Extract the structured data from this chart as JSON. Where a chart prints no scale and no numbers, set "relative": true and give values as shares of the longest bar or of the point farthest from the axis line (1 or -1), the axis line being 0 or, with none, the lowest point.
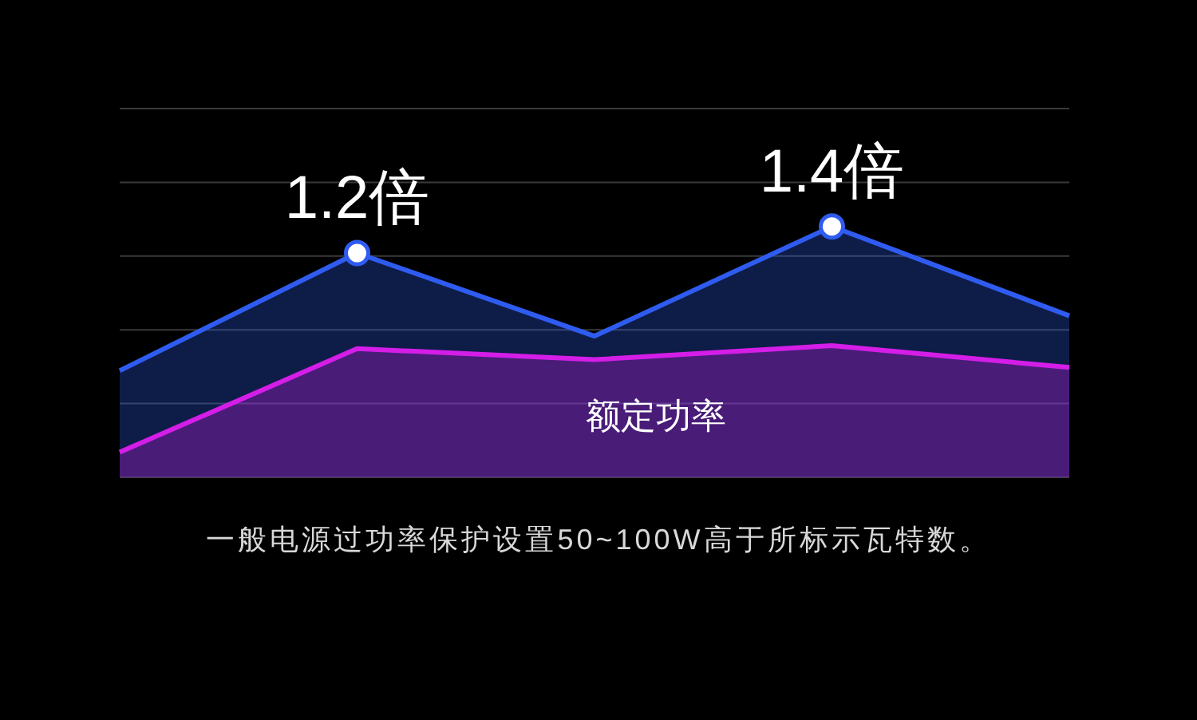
{
  "chart_data": {
    "type": "area",
    "relative": true,
    "grid": "y",
    "categories": [
      null,
      null,
      null,
      null,
      null
    ],
    "series": [
      {
        "name": null,
        "color": "#2f5cf0",
        "values": [
          0.425,
          0.894,
          0.563,
          1,
          0.644
        ]
      },
      {
        "name": null,
        "color": "#d41ee8",
        "values": [
          0.1,
          0.513,
          0.469,
          0.525,
          0.438
        ]
      }
    ],
    "annotations": [
      "1.2倍",
      "1.4倍",
      "额定功率",
      "一般电源过功率保护设置50~100W高于所标示瓦特数。"
    ]
  }
}
